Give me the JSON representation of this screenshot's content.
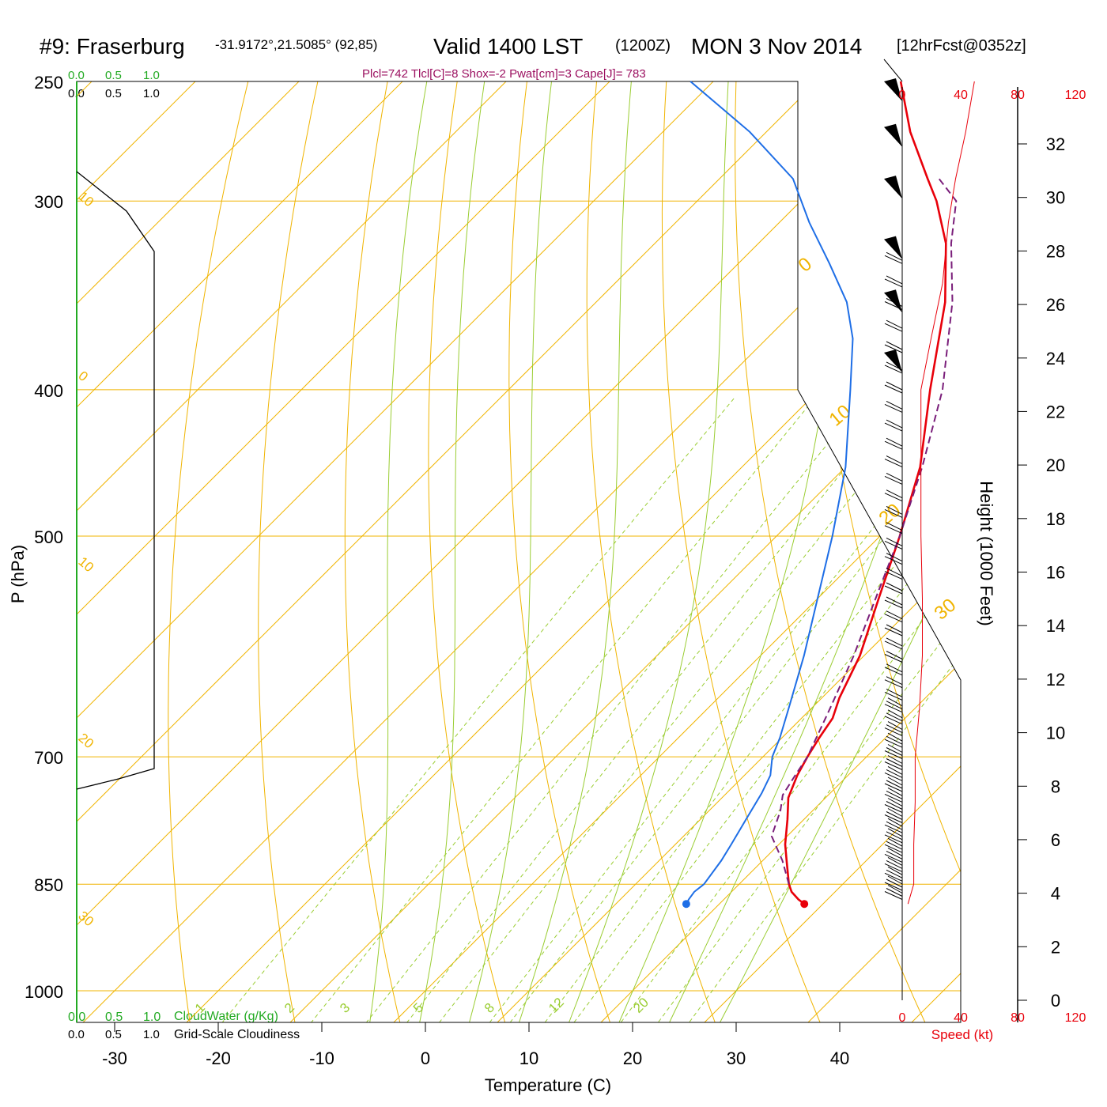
{
  "header": {
    "station": "#9: Fraserburg",
    "coords": "-31.9172°,21.5085° (92,85)",
    "valid": "Valid 1400 LST",
    "zulu": "(1200Z)",
    "date": "MON 3 Nov 2014",
    "forecast": "[12hrFcst@0352z]",
    "indices": "Plcl=742 Tlcl[C]=8 Shox=-2 Pwat[cm]=3 Cape[J]= 783"
  },
  "cloud_scales": {
    "top_green": [
      "0.0",
      "0.5",
      "1.0"
    ],
    "top_black": [
      "0.0",
      "0.5",
      "1.0"
    ],
    "bottom_green": [
      "0.0",
      "0.5",
      "1.0"
    ],
    "bottom_black": [
      "0.0",
      "0.5",
      "1.0"
    ],
    "cloudwater_label": "CloudWater (g/Kg)",
    "cloudiness_label": "Grid-Scale Cloudiness"
  },
  "speed_axis": {
    "ticks": [
      "0",
      "40",
      "80",
      "120"
    ],
    "label": "Speed (kt)"
  },
  "colors": {
    "isotherm": "#f0b400",
    "adiabat": "#9acd32",
    "temperature": "#e8000a",
    "dewpoint": "#1e6ee6",
    "parcel": "#7a1e7a",
    "cloud_green": "#22aa22",
    "indices": "#9b1060"
  },
  "chart_data": {
    "type": "line",
    "skew_t": true,
    "xlabel": "Temperature (C)",
    "ylabel": "P (hPa)",
    "y2label": "Height (1000 Feet)",
    "xticks": [
      -30,
      -20,
      -10,
      0,
      10,
      20,
      30,
      40
    ],
    "pressure_levels": [
      250,
      300,
      400,
      500,
      700,
      850,
      1000
    ],
    "height_ticks_kft": [
      0,
      2,
      4,
      6,
      8,
      10,
      12,
      14,
      16,
      18,
      20,
      22,
      24,
      26,
      28,
      30,
      32
    ],
    "isotherm_labels": [
      "-30",
      "-20",
      "-10",
      "0",
      "10",
      "20",
      "30",
      "0",
      "10",
      "20",
      "30"
    ],
    "mixing_ratio_labels": [
      "1",
      "2",
      "3",
      "5",
      "8",
      "12",
      "20"
    ],
    "mixing_ratio_values": [
      1,
      2,
      3,
      5,
      8,
      12,
      20
    ],
    "series": [
      {
        "key": "temperature",
        "points": [
          [
            876,
            28.2
          ],
          [
            870,
            27.2
          ],
          [
            860,
            25.8
          ],
          [
            850,
            24.8
          ],
          [
            820,
            22.3
          ],
          [
            800,
            20.6
          ],
          [
            770,
            18.4
          ],
          [
            745,
            16.4
          ],
          [
            720,
            15.1
          ],
          [
            700,
            14.3
          ],
          [
            680,
            13.6
          ],
          [
            660,
            13.0
          ],
          [
            640,
            11.7
          ],
          [
            600,
            9.6
          ],
          [
            550,
            5.9
          ],
          [
            500,
            1.9
          ],
          [
            450,
            -2.8
          ],
          [
            400,
            -9.3
          ],
          [
            350,
            -16.3
          ],
          [
            320,
            -21.9
          ],
          [
            300,
            -26.9
          ],
          [
            290,
            -29.9
          ],
          [
            270,
            -36.1
          ],
          [
            250,
            -41.9
          ]
        ]
      },
      {
        "key": "dewpoint",
        "points": [
          [
            876,
            16.8
          ],
          [
            870,
            16.6
          ],
          [
            860,
            16.4
          ],
          [
            850,
            16.6
          ],
          [
            820,
            16.0
          ],
          [
            800,
            15.4
          ],
          [
            770,
            14.4
          ],
          [
            740,
            13.4
          ],
          [
            720,
            12.5
          ],
          [
            700,
            10.9
          ],
          [
            680,
            9.8
          ],
          [
            650,
            7.8
          ],
          [
            600,
            4.2
          ],
          [
            550,
            0.0
          ],
          [
            500,
            -4.6
          ],
          [
            450,
            -10.0
          ],
          [
            400,
            -17.0
          ],
          [
            370,
            -21.7
          ],
          [
            350,
            -25.8
          ],
          [
            330,
            -31.2
          ],
          [
            310,
            -37.1
          ],
          [
            290,
            -42.9
          ],
          [
            270,
            -51.6
          ],
          [
            250,
            -62.2
          ]
        ]
      },
      {
        "key": "parcel",
        "points": [
          [
            850,
            24.8
          ],
          [
            820,
            21.9
          ],
          [
            790,
            18.5
          ],
          [
            760,
            16.9
          ],
          [
            742,
            15.6
          ],
          [
            720,
            14.9
          ],
          [
            700,
            14.3
          ],
          [
            650,
            11.8
          ],
          [
            600,
            9.0
          ],
          [
            550,
            5.6
          ],
          [
            500,
            1.9
          ],
          [
            450,
            -2.6
          ],
          [
            400,
            -8.1
          ],
          [
            350,
            -15.6
          ],
          [
            320,
            -21.4
          ],
          [
            300,
            -25.0
          ],
          [
            290,
            -28.8
          ]
        ]
      }
    ],
    "surface_points": [
      {
        "key": "temperature",
        "p": 876,
        "t": 28.2
      },
      {
        "key": "dewpoint",
        "p": 876,
        "t": 16.8
      }
    ],
    "wind_speed_profile_kt": [
      [
        876,
        4
      ],
      [
        850,
        8
      ],
      [
        800,
        8
      ],
      [
        750,
        9
      ],
      [
        700,
        9
      ],
      [
        650,
        12
      ],
      [
        600,
        14
      ],
      [
        550,
        14
      ],
      [
        500,
        13
      ],
      [
        450,
        13
      ],
      [
        400,
        13
      ],
      [
        370,
        20
      ],
      [
        340,
        28
      ],
      [
        310,
        32
      ],
      [
        290,
        37
      ],
      [
        270,
        44
      ],
      [
        250,
        50
      ]
    ]
  }
}
